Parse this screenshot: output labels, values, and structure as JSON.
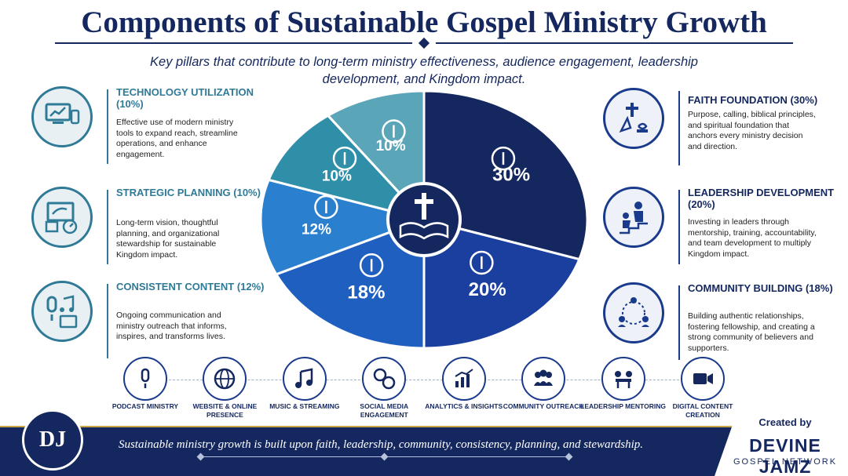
{
  "header": {
    "title": "Components of Sustainable Gospel Ministry Growth",
    "subtitle": "Key pillars that contribute to long-term ministry effectiveness, audience engagement, leadership development, and Kingdom impact."
  },
  "pillars": {
    "technology": {
      "title": "TECHNOLOGY UTILIZATION (10%)",
      "desc": "Effective use of modern ministry tools to expand reach, streamline operations, and enhance engagement."
    },
    "strategic": {
      "title": "STRATEGIC PLANNING (10%)",
      "desc": "Long-term vision, thoughtful planning, and organizational stewardship for sustainable Kingdom impact."
    },
    "content": {
      "title": "CONSISTENT CONTENT (12%)",
      "desc": "Ongoing communication and ministry outreach that informs, inspires, and transforms lives."
    },
    "faith": {
      "title": "FAITH FOUNDATION (30%)",
      "desc": "Purpose, calling, biblical principles, and spiritual foundation that anchors every ministry decision and direction."
    },
    "leadership": {
      "title": "LEADERSHIP DEVELOPMENT (20%)",
      "desc": "Investing in leaders through mentorship, training, accountability, and team development to multiply Kingdom impact."
    },
    "community": {
      "title": "COMMUNITY BUILDING (18%)",
      "desc": "Building authentic relationships, fostering fellowship, and creating a strong community of believers and supporters."
    }
  },
  "chart_data": {
    "type": "pie",
    "start_angle_deg": 0,
    "direction": "clockwise",
    "slices": [
      {
        "name": "Faith Foundation",
        "value": 30,
        "label": "30%",
        "color": "#14275e",
        "icon": "praying-hands-cross-icon"
      },
      {
        "name": "Leadership Development",
        "value": 20,
        "label": "20%",
        "color": "#1a3f9e",
        "icon": "mentor-stairs-icon"
      },
      {
        "name": "Community Building",
        "value": 18,
        "label": "18%",
        "color": "#1f5fc0",
        "icon": "community-network-icon"
      },
      {
        "name": "Consistent Content",
        "value": 12,
        "label": "12%",
        "color": "#2a7fcf",
        "icon": "media-content-icon"
      },
      {
        "name": "Strategic Planning",
        "value": 10,
        "label": "10%",
        "color": "#2f8ea8",
        "icon": "planning-board-icon"
      },
      {
        "name": "Technology Utilization",
        "value": 10,
        "label": "10%",
        "color": "#5aa6b8",
        "icon": "devices-icon"
      }
    ],
    "center_icon": "bible-cross-icon"
  },
  "strip": [
    {
      "label": "PODCAST MINISTRY",
      "icon": "microphone-icon"
    },
    {
      "label": "WEBSITE & ONLINE PRESENCE",
      "icon": "globe-www-icon"
    },
    {
      "label": "MUSIC & STREAMING",
      "icon": "music-note-icon"
    },
    {
      "label": "SOCIAL MEDIA ENGAGEMENT",
      "icon": "social-chat-icon"
    },
    {
      "label": "ANALYTICS & INSIGHTS",
      "icon": "analytics-chart-icon"
    },
    {
      "label": "COMMUNITY OUTREACH",
      "icon": "group-people-icon"
    },
    {
      "label": "LEADERSHIP MENTORING",
      "icon": "mentoring-table-icon"
    },
    {
      "label": "DIGITAL CONTENT CREATION",
      "icon": "video-camera-icon"
    }
  ],
  "footer": {
    "logo": "DJ",
    "text": "Sustainable ministry growth is built upon faith, leadership, community, consistency, planning, and stewardship.",
    "created_by": "Created by",
    "brand_name": "DEVINE JAMZ",
    "brand_sub": "GOSPEL NETWORK"
  },
  "colors": {
    "navy": "#14275e",
    "teal": "#2f7a97",
    "gold": "#c9a648"
  }
}
